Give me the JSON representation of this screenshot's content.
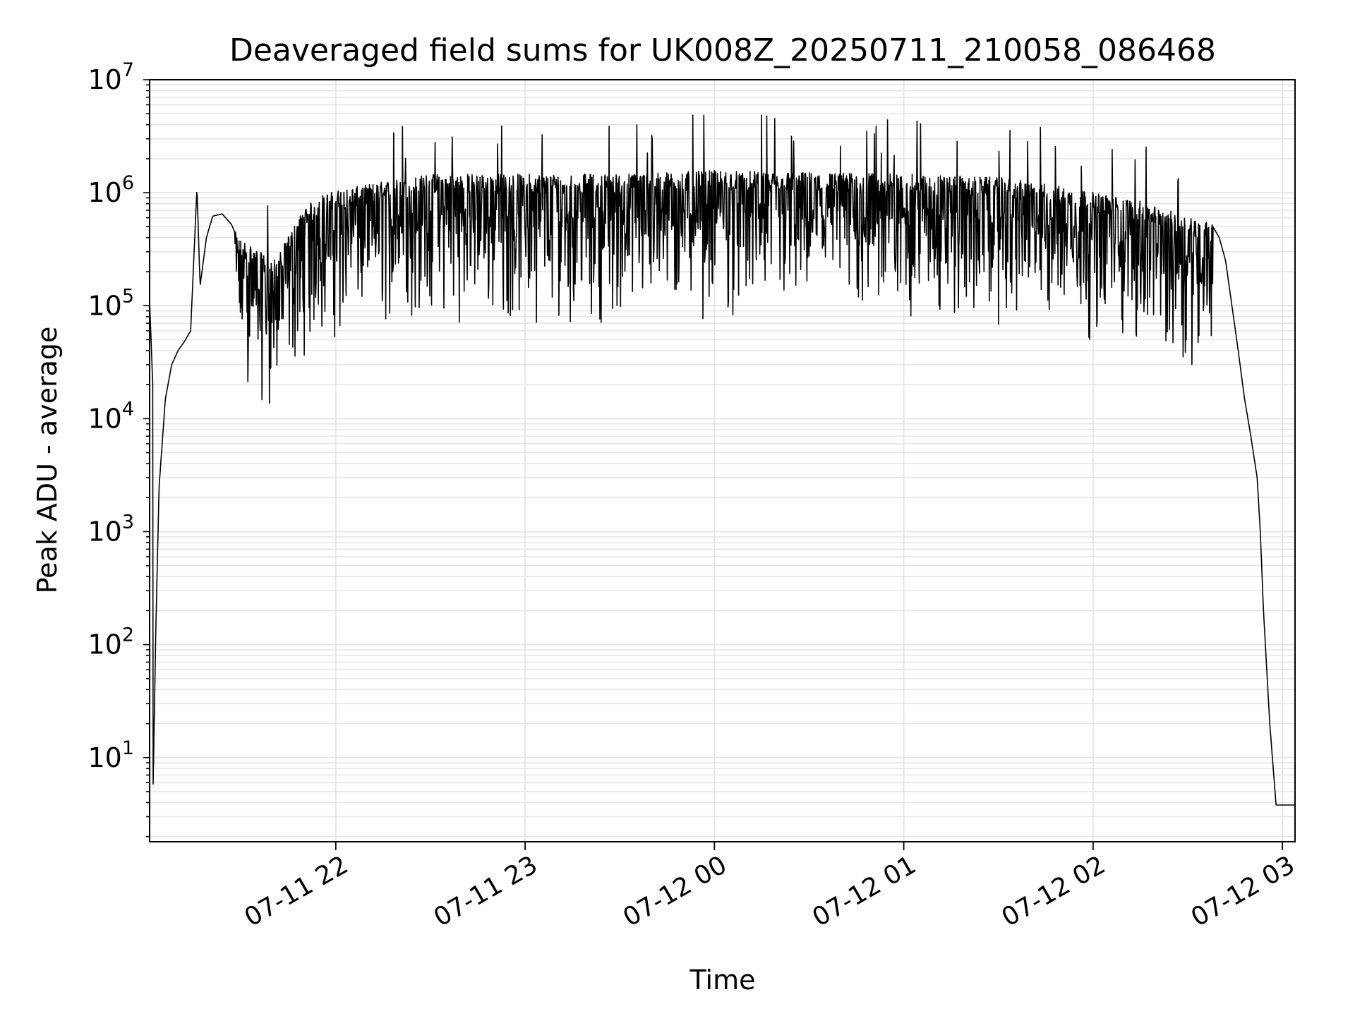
{
  "chart_data": {
    "type": "line",
    "title": "Deaveraged field sums for UK008Z_20250711_210058_086468",
    "xlabel": "Time",
    "ylabel": "Peak ADU - average",
    "x_ticks": [
      "07-11 22",
      "07-11 23",
      "07-12 00",
      "07-12 01",
      "07-12 02",
      "07-12 03"
    ],
    "y_ticks": [
      {
        "base": "10",
        "exp": "1"
      },
      {
        "base": "10",
        "exp": "2"
      },
      {
        "base": "10",
        "exp": "3"
      },
      {
        "base": "10",
        "exp": "4"
      },
      {
        "base": "10",
        "exp": "5"
      },
      {
        "base": "10",
        "exp": "6"
      },
      {
        "base": "10",
        "exp": "7"
      }
    ],
    "y_scale": "log",
    "ylim": [
      1.8,
      10000000
    ],
    "xlim": [
      "2025-07-11 21:01",
      "2025-07-12 03:04"
    ],
    "grid": true,
    "line_color": "#000000",
    "grid_color": "#e6e6e6",
    "series": [
      {
        "values_description_free": true,
        "points": [
          [
            "2025-07-11 21:01",
            110000
          ],
          [
            "2025-07-11 21:02",
            20000
          ],
          [
            "2025-07-11 21:02",
            3.8
          ],
          [
            "2025-07-11 21:03",
            150
          ],
          [
            "2025-07-11 21:04",
            2500
          ],
          [
            "2025-07-11 21:06",
            15000
          ],
          [
            "2025-07-11 21:08",
            30000
          ],
          [
            "2025-07-11 21:10",
            40000
          ],
          [
            "2025-07-11 21:12",
            48000
          ],
          [
            "2025-07-11 21:14",
            60000
          ],
          [
            "2025-07-11 21:16",
            1100000
          ],
          [
            "2025-07-11 21:17",
            150000
          ],
          [
            "2025-07-11 21:19",
            400000
          ],
          [
            "2025-07-11 21:21",
            620000
          ],
          [
            "2025-07-11 21:24",
            650000
          ],
          [
            "2025-07-11 21:27",
            520000
          ],
          [
            "2025-07-11 21:29",
            380000
          ],
          [
            "2025-07-11 21:32",
            350000
          ],
          [
            "2025-07-11 21:35",
            300000
          ],
          [
            "2025-07-11 21:38",
            260000
          ],
          [
            "2025-07-11 21:41",
            240000
          ],
          [
            "2025-07-11 21:44",
            350000
          ],
          [
            "2025-07-11 21:47",
            500000
          ],
          [
            "2025-07-11 21:50",
            700000
          ],
          [
            "2025-07-11 21:55",
            900000
          ],
          [
            "2025-07-11 22:00",
            1000000
          ],
          [
            "2025-07-11 22:15",
            1200000
          ],
          [
            "2025-07-11 22:30",
            1400000
          ],
          [
            "2025-07-11 22:45",
            1400000
          ],
          [
            "2025-07-11 23:00",
            1400000
          ],
          [
            "2025-07-11 23:30",
            1400000
          ],
          [
            "2025-07-12 00:00",
            1500000
          ],
          [
            "2025-07-12 00:30",
            1450000
          ],
          [
            "2025-07-12 01:00",
            1400000
          ],
          [
            "2025-07-12 01:30",
            1300000
          ],
          [
            "2025-07-12 01:50",
            1100000
          ],
          [
            "2025-07-12 02:05",
            900000
          ],
          [
            "2025-07-12 02:15",
            800000
          ],
          [
            "2025-07-12 02:25",
            650000
          ],
          [
            "2025-07-12 02:35",
            550000
          ],
          [
            "2025-07-12 02:38",
            500000
          ],
          [
            "2025-07-12 02:40",
            400000
          ],
          [
            "2025-07-12 02:42",
            250000
          ],
          [
            "2025-07-12 02:44",
            100000
          ],
          [
            "2025-07-12 02:46",
            40000
          ],
          [
            "2025-07-12 02:48",
            15000
          ],
          [
            "2025-07-12 02:50",
            7000
          ],
          [
            "2025-07-12 02:52",
            3000
          ],
          [
            "2025-07-12 02:53",
            1000
          ],
          [
            "2025-07-12 02:54",
            200
          ],
          [
            "2025-07-12 02:56",
            20
          ],
          [
            "2025-07-12 02:58",
            3.8
          ],
          [
            "2025-07-12 03:04",
            3.8
          ]
        ]
      }
    ]
  }
}
